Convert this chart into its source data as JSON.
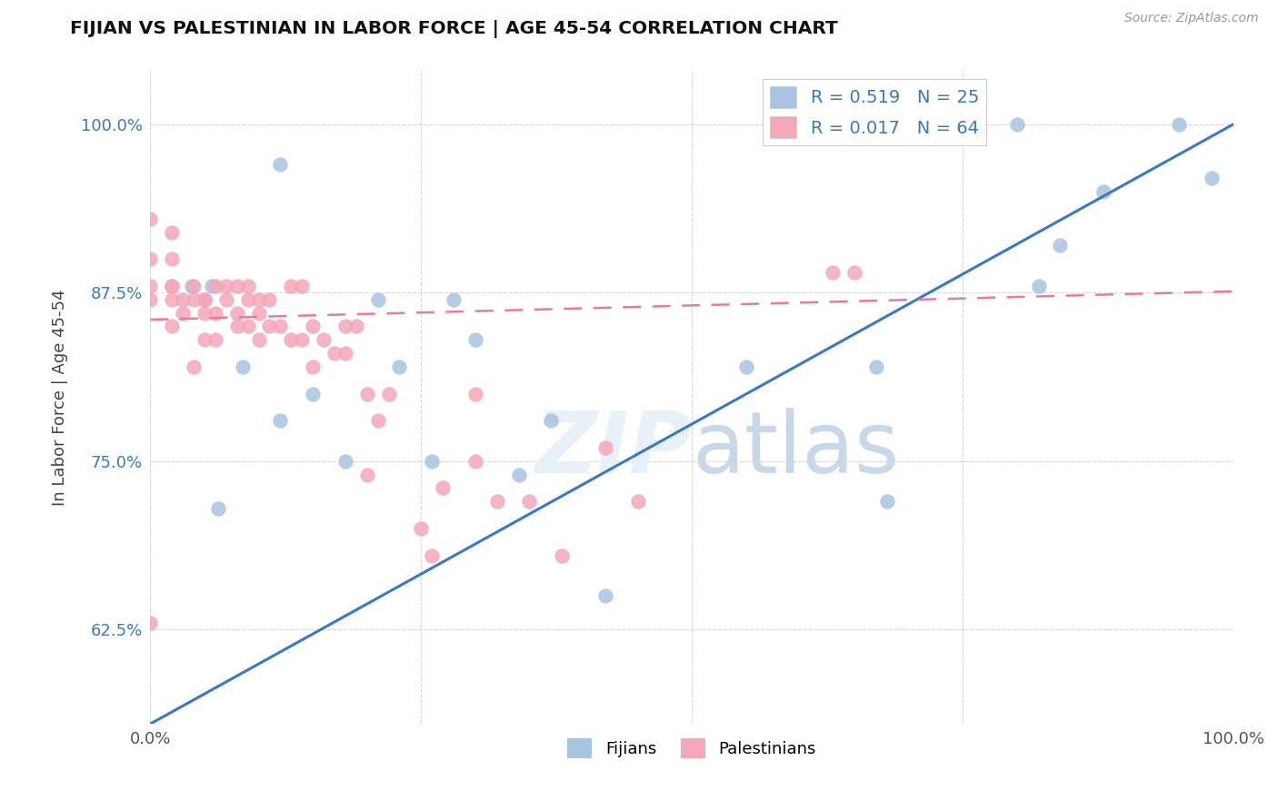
{
  "title": "FIJIAN VS PALESTINIAN IN LABOR FORCE | AGE 45-54 CORRELATION CHART",
  "source": "Source: ZipAtlas.com",
  "ylabel": "In Labor Force | Age 45-54",
  "xlim": [
    0.0,
    1.0
  ],
  "ylim": [
    0.555,
    1.04
  ],
  "xticks": [
    0.0,
    0.25,
    0.5,
    0.75,
    1.0
  ],
  "xtick_labels": [
    "0.0%",
    "",
    "",
    "",
    "100.0%"
  ],
  "ytick_labels": [
    "62.5%",
    "75.0%",
    "87.5%",
    "100.0%"
  ],
  "ytick_vals": [
    0.625,
    0.75,
    0.875,
    1.0
  ],
  "legend_labels": [
    "Fijians",
    "Palestinians"
  ],
  "fijian_color": "#a8c4e0",
  "palestinian_color": "#f4a7b9",
  "fijian_line_color": "#3b78c4",
  "palestinian_line_color": "#e87aa0",
  "watermark": "ZIPatlas",
  "fijian_R": 0.519,
  "fijian_N": 25,
  "palestinian_R": 0.017,
  "palestinian_N": 64,
  "fijians_x": [
    0.038,
    0.057,
    0.063,
    0.085,
    0.12,
    0.12,
    0.15,
    0.18,
    0.21,
    0.23,
    0.26,
    0.28,
    0.34,
    0.37,
    0.42,
    0.55,
    0.67,
    0.68,
    0.8,
    0.82,
    0.84,
    0.88,
    0.95,
    0.98,
    0.3
  ],
  "fijians_y": [
    0.88,
    0.88,
    0.715,
    0.82,
    0.97,
    0.78,
    0.8,
    0.75,
    0.87,
    0.82,
    0.75,
    0.87,
    0.74,
    0.78,
    0.65,
    0.82,
    0.82,
    0.72,
    1.0,
    0.88,
    0.91,
    0.95,
    1.0,
    0.96,
    0.84
  ],
  "palestinians_x": [
    0.0,
    0.0,
    0.0,
    0.0,
    0.0,
    0.02,
    0.02,
    0.02,
    0.02,
    0.02,
    0.03,
    0.03,
    0.04,
    0.04,
    0.04,
    0.05,
    0.05,
    0.05,
    0.05,
    0.06,
    0.06,
    0.06,
    0.07,
    0.07,
    0.08,
    0.08,
    0.08,
    0.09,
    0.09,
    0.09,
    0.1,
    0.1,
    0.1,
    0.11,
    0.11,
    0.12,
    0.13,
    0.13,
    0.14,
    0.14,
    0.15,
    0.15,
    0.16,
    0.17,
    0.18,
    0.18,
    0.19,
    0.2,
    0.2,
    0.21,
    0.22,
    0.25,
    0.26,
    0.27,
    0.3,
    0.3,
    0.32,
    0.35,
    0.38,
    0.42,
    0.45,
    0.63,
    0.65,
    0.02
  ],
  "palestinians_y": [
    0.63,
    0.87,
    0.88,
    0.9,
    0.93,
    0.85,
    0.87,
    0.88,
    0.88,
    0.9,
    0.86,
    0.87,
    0.82,
    0.87,
    0.88,
    0.84,
    0.86,
    0.87,
    0.87,
    0.84,
    0.86,
    0.88,
    0.87,
    0.88,
    0.85,
    0.86,
    0.88,
    0.85,
    0.87,
    0.88,
    0.84,
    0.86,
    0.87,
    0.85,
    0.87,
    0.85,
    0.84,
    0.88,
    0.84,
    0.88,
    0.82,
    0.85,
    0.84,
    0.83,
    0.83,
    0.85,
    0.85,
    0.74,
    0.8,
    0.78,
    0.8,
    0.7,
    0.68,
    0.73,
    0.75,
    0.8,
    0.72,
    0.72,
    0.68,
    0.76,
    0.72,
    0.89,
    0.89,
    0.92
  ]
}
